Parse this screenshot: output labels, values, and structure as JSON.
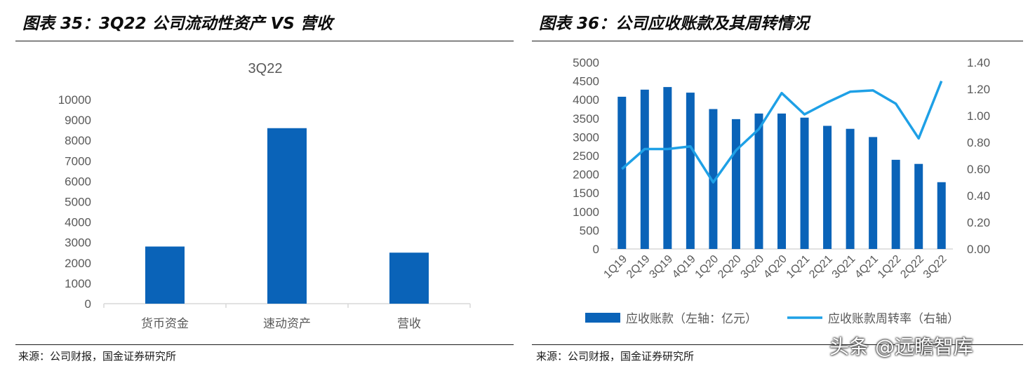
{
  "left_panel": {
    "title": "图表 35：3Q22 公司流动性资产 VS 营收",
    "source": "来源：公司财报，国金证券研究所"
  },
  "right_panel": {
    "title": "图表 36：公司应收账款及其周转情况",
    "source": "来源：公司财报，国金证券研究所"
  },
  "watermark": "头条 @远瞻智库",
  "colors": {
    "bar": "#0a63b8",
    "line": "#1ea0e6",
    "axis": "#d9d9d9",
    "text": "#595959"
  },
  "chart_data": [
    {
      "type": "bar",
      "title": "3Q22",
      "categories": [
        "货币资金",
        "速动资产",
        "营收"
      ],
      "values": [
        2800,
        8600,
        2500
      ],
      "ylim": [
        0,
        10000
      ],
      "yticks": [
        "0",
        "1000",
        "2000",
        "3000",
        "4000",
        "5000",
        "6000",
        "7000",
        "8000",
        "9000",
        "10000"
      ],
      "grid": false,
      "xlabel": "",
      "ylabel": ""
    },
    {
      "type": "bar",
      "title": "",
      "categories": [
        "1Q19",
        "2Q19",
        "3Q19",
        "4Q19",
        "1Q20",
        "2Q20",
        "3Q20",
        "4Q20",
        "1Q21",
        "2Q21",
        "3Q21",
        "4Q21",
        "1Q22",
        "2Q22",
        "3Q22"
      ],
      "series": [
        {
          "name": "应收账款（左轴：亿元）",
          "type": "bar",
          "axis": "left",
          "values": [
            4080,
            4270,
            4340,
            4190,
            3750,
            3480,
            3630,
            3630,
            3520,
            3300,
            3220,
            3000,
            2390,
            2280,
            1790
          ]
        },
        {
          "name": "应收账款周转率（右轴）",
          "type": "line",
          "axis": "right",
          "values": [
            0.6,
            0.75,
            0.75,
            0.77,
            0.5,
            0.74,
            0.9,
            1.17,
            1.01,
            1.1,
            1.18,
            1.19,
            1.09,
            0.83,
            1.26
          ]
        }
      ],
      "ylim_left": [
        0,
        5000
      ],
      "yticks_left": [
        "0",
        "500",
        "1000",
        "1500",
        "2000",
        "2500",
        "3000",
        "3500",
        "4000",
        "4500",
        "5000"
      ],
      "ylim_right": [
        0,
        1.4
      ],
      "yticks_right": [
        "0.00",
        "0.20",
        "0.40",
        "0.60",
        "0.80",
        "1.00",
        "1.20",
        "1.40"
      ],
      "legend": "bottom",
      "grid": false
    }
  ]
}
